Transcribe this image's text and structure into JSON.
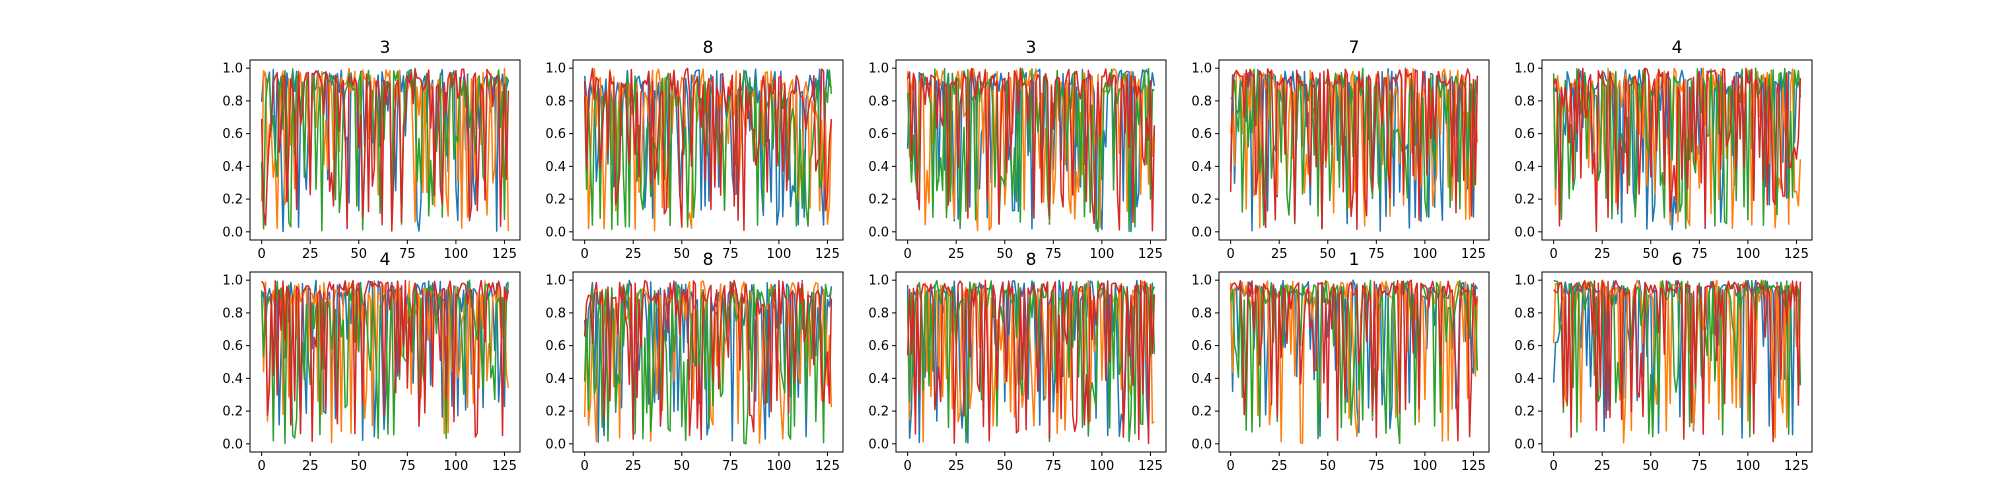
{
  "chart_data": [
    {
      "type": "line",
      "title": "3",
      "xlim": [
        -6,
        133
      ],
      "ylim": [
        -0.05,
        1.05
      ],
      "xticks": [
        0,
        25,
        50,
        75,
        100,
        125
      ],
      "yticks": [
        0.0,
        0.2,
        0.4,
        0.6,
        0.8,
        1.0
      ],
      "series": [
        {
          "color": "#1f77b4",
          "x_range": [
            0,
            127
          ],
          "baseline": 0.85,
          "dip_rate": 0.42,
          "seed": 11
        },
        {
          "color": "#ff7f0e",
          "x_range": [
            0,
            127
          ],
          "baseline": 0.85,
          "dip_rate": 0.45,
          "seed": 12
        },
        {
          "color": "#2ca02c",
          "x_range": [
            0,
            127
          ],
          "baseline": 0.85,
          "dip_rate": 0.5,
          "seed": 13
        },
        {
          "color": "#d62728",
          "x_range": [
            0,
            127
          ],
          "baseline": 0.88,
          "dip_rate": 0.4,
          "seed": 14
        }
      ]
    },
    {
      "type": "line",
      "title": "8",
      "xlim": [
        -6,
        133
      ],
      "ylim": [
        -0.05,
        1.05
      ],
      "xticks": [
        0,
        25,
        50,
        75,
        100,
        125
      ],
      "yticks": [
        0.0,
        0.2,
        0.4,
        0.6,
        0.8,
        1.0
      ],
      "series": [
        {
          "color": "#1f77b4",
          "x_range": [
            0,
            127
          ],
          "baseline": 0.8,
          "dip_rate": 0.45,
          "seed": 21
        },
        {
          "color": "#ff7f0e",
          "x_range": [
            0,
            127
          ],
          "baseline": 0.78,
          "dip_rate": 0.45,
          "seed": 22
        },
        {
          "color": "#2ca02c",
          "x_range": [
            0,
            127
          ],
          "baseline": 0.75,
          "dip_rate": 0.55,
          "seed": 23
        },
        {
          "color": "#d62728",
          "x_range": [
            0,
            127
          ],
          "baseline": 0.8,
          "dip_rate": 0.45,
          "seed": 24
        }
      ]
    },
    {
      "type": "line",
      "title": "3",
      "xlim": [
        -6,
        133
      ],
      "ylim": [
        -0.05,
        1.05
      ],
      "xticks": [
        0,
        25,
        50,
        75,
        100,
        125
      ],
      "yticks": [
        0.0,
        0.2,
        0.4,
        0.6,
        0.8,
        1.0
      ],
      "series": [
        {
          "color": "#1f77b4",
          "x_range": [
            0,
            127
          ],
          "baseline": 0.85,
          "dip_rate": 0.4,
          "seed": 31
        },
        {
          "color": "#ff7f0e",
          "x_range": [
            0,
            127
          ],
          "baseline": 0.85,
          "dip_rate": 0.45,
          "seed": 32
        },
        {
          "color": "#2ca02c",
          "x_range": [
            0,
            127
          ],
          "baseline": 0.82,
          "dip_rate": 0.5,
          "seed": 33
        },
        {
          "color": "#d62728",
          "x_range": [
            0,
            127
          ],
          "baseline": 0.88,
          "dip_rate": 0.4,
          "seed": 34
        }
      ]
    },
    {
      "type": "line",
      "title": "7",
      "xlim": [
        -6,
        133
      ],
      "ylim": [
        -0.05,
        1.05
      ],
      "xticks": [
        0,
        25,
        50,
        75,
        100,
        125
      ],
      "yticks": [
        0.0,
        0.2,
        0.4,
        0.6,
        0.8,
        1.0
      ],
      "series": [
        {
          "color": "#1f77b4",
          "x_range": [
            0,
            127
          ],
          "baseline": 0.85,
          "dip_rate": 0.4,
          "seed": 41
        },
        {
          "color": "#ff7f0e",
          "x_range": [
            0,
            127
          ],
          "baseline": 0.85,
          "dip_rate": 0.45,
          "seed": 42
        },
        {
          "color": "#2ca02c",
          "x_range": [
            0,
            127
          ],
          "baseline": 0.82,
          "dip_rate": 0.5,
          "seed": 43
        },
        {
          "color": "#d62728",
          "x_range": [
            0,
            127
          ],
          "baseline": 0.88,
          "dip_rate": 0.4,
          "seed": 44
        }
      ]
    },
    {
      "type": "line",
      "title": "4",
      "xlim": [
        -6,
        133
      ],
      "ylim": [
        -0.05,
        1.05
      ],
      "xticks": [
        0,
        25,
        50,
        75,
        100,
        125
      ],
      "yticks": [
        0.0,
        0.2,
        0.4,
        0.6,
        0.8,
        1.0
      ],
      "series": [
        {
          "color": "#1f77b4",
          "x_range": [
            0,
            127
          ],
          "baseline": 0.85,
          "dip_rate": 0.45,
          "seed": 51
        },
        {
          "color": "#ff7f0e",
          "x_range": [
            0,
            127
          ],
          "baseline": 0.85,
          "dip_rate": 0.45,
          "seed": 52
        },
        {
          "color": "#2ca02c",
          "x_range": [
            0,
            127
          ],
          "baseline": 0.82,
          "dip_rate": 0.5,
          "seed": 53
        },
        {
          "color": "#d62728",
          "x_range": [
            0,
            127
          ],
          "baseline": 0.88,
          "dip_rate": 0.45,
          "seed": 54
        }
      ]
    },
    {
      "type": "line",
      "title": "4",
      "xlim": [
        -6,
        133
      ],
      "ylim": [
        -0.05,
        1.05
      ],
      "xticks": [
        0,
        25,
        50,
        75,
        100,
        125
      ],
      "yticks": [
        0.0,
        0.2,
        0.4,
        0.6,
        0.8,
        1.0
      ],
      "series": [
        {
          "color": "#1f77b4",
          "x_range": [
            0,
            127
          ],
          "baseline": 0.88,
          "dip_rate": 0.35,
          "seed": 61
        },
        {
          "color": "#ff7f0e",
          "x_range": [
            0,
            127
          ],
          "baseline": 0.85,
          "dip_rate": 0.4,
          "seed": 62
        },
        {
          "color": "#2ca02c",
          "x_range": [
            0,
            127
          ],
          "baseline": 0.82,
          "dip_rate": 0.45,
          "seed": 63
        },
        {
          "color": "#d62728",
          "x_range": [
            0,
            127
          ],
          "baseline": 0.9,
          "dip_rate": 0.35,
          "seed": 64
        }
      ]
    },
    {
      "type": "line",
      "title": "8",
      "xlim": [
        -6,
        133
      ],
      "ylim": [
        -0.05,
        1.05
      ],
      "xticks": [
        0,
        25,
        50,
        75,
        100,
        125
      ],
      "yticks": [
        0.0,
        0.2,
        0.4,
        0.6,
        0.8,
        1.0
      ],
      "series": [
        {
          "color": "#1f77b4",
          "x_range": [
            0,
            127
          ],
          "baseline": 0.82,
          "dip_rate": 0.4,
          "seed": 71
        },
        {
          "color": "#ff7f0e",
          "x_range": [
            0,
            127
          ],
          "baseline": 0.8,
          "dip_rate": 0.45,
          "seed": 72
        },
        {
          "color": "#2ca02c",
          "x_range": [
            0,
            127
          ],
          "baseline": 0.78,
          "dip_rate": 0.5,
          "seed": 73
        },
        {
          "color": "#d62728",
          "x_range": [
            0,
            127
          ],
          "baseline": 0.85,
          "dip_rate": 0.4,
          "seed": 74
        }
      ]
    },
    {
      "type": "line",
      "title": "8",
      "xlim": [
        -6,
        133
      ],
      "ylim": [
        -0.05,
        1.05
      ],
      "xticks": [
        0,
        25,
        50,
        75,
        100,
        125
      ],
      "yticks": [
        0.0,
        0.2,
        0.4,
        0.6,
        0.8,
        1.0
      ],
      "series": [
        {
          "color": "#1f77b4",
          "x_range": [
            0,
            127
          ],
          "baseline": 0.88,
          "dip_rate": 0.4,
          "seed": 81
        },
        {
          "color": "#ff7f0e",
          "x_range": [
            0,
            127
          ],
          "baseline": 0.85,
          "dip_rate": 0.45,
          "seed": 82
        },
        {
          "color": "#2ca02c",
          "x_range": [
            0,
            127
          ],
          "baseline": 0.85,
          "dip_rate": 0.5,
          "seed": 83
        },
        {
          "color": "#d62728",
          "x_range": [
            0,
            127
          ],
          "baseline": 0.9,
          "dip_rate": 0.45,
          "seed": 84
        }
      ]
    },
    {
      "type": "line",
      "title": "1",
      "xlim": [
        -6,
        133
      ],
      "ylim": [
        -0.05,
        1.05
      ],
      "xticks": [
        0,
        25,
        50,
        75,
        100,
        125
      ],
      "yticks": [
        0.0,
        0.2,
        0.4,
        0.6,
        0.8,
        1.0
      ],
      "series": [
        {
          "color": "#1f77b4",
          "x_range": [
            0,
            127
          ],
          "baseline": 0.88,
          "dip_rate": 0.35,
          "seed": 91
        },
        {
          "color": "#ff7f0e",
          "x_range": [
            0,
            127
          ],
          "baseline": 0.88,
          "dip_rate": 0.35,
          "seed": 92
        },
        {
          "color": "#2ca02c",
          "x_range": [
            0,
            127
          ],
          "baseline": 0.85,
          "dip_rate": 0.4,
          "seed": 93
        },
        {
          "color": "#d62728",
          "x_range": [
            0,
            127
          ],
          "baseline": 0.9,
          "dip_rate": 0.35,
          "seed": 94
        }
      ]
    },
    {
      "type": "line",
      "title": "6",
      "xlim": [
        -6,
        133
      ],
      "ylim": [
        -0.05,
        1.05
      ],
      "xticks": [
        0,
        25,
        50,
        75,
        100,
        125
      ],
      "yticks": [
        0.0,
        0.2,
        0.4,
        0.6,
        0.8,
        1.0
      ],
      "series": [
        {
          "color": "#1f77b4",
          "x_range": [
            0,
            127
          ],
          "baseline": 0.9,
          "dip_rate": 0.3,
          "seed": 101
        },
        {
          "color": "#ff7f0e",
          "x_range": [
            0,
            127
          ],
          "baseline": 0.88,
          "dip_rate": 0.35,
          "seed": 102
        },
        {
          "color": "#2ca02c",
          "x_range": [
            0,
            127
          ],
          "baseline": 0.88,
          "dip_rate": 0.35,
          "seed": 103
        },
        {
          "color": "#d62728",
          "x_range": [
            0,
            127
          ],
          "baseline": 0.92,
          "dip_rate": 0.3,
          "seed": 104
        }
      ]
    }
  ]
}
